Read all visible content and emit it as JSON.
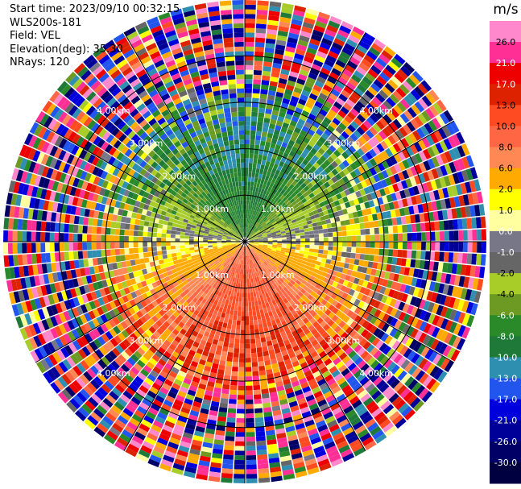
{
  "info": {
    "start_time": "Start time: 2023/09/10 00:32:15",
    "instrument": "WLS200s-181",
    "field": "Field: VEL",
    "elevation": "Elevation(deg): 35.30",
    "nrays": "NRays: 120"
  },
  "chart_data": {
    "type": "heatmap",
    "projection": "polar-ppi",
    "field": "VEL",
    "units": "m/s",
    "nrays": 120,
    "elevation_deg": 35.3,
    "range_rings_km": [
      1.0,
      2.0,
      3.0,
      4.0
    ],
    "ring_labels": [
      "1.00km",
      "2.00km",
      "3.00km",
      "4.00km"
    ],
    "max_range_km": 5.2,
    "radial_lines_deg": [
      0,
      30,
      60,
      90,
      120,
      150,
      180,
      210,
      240,
      270,
      300,
      330
    ],
    "velocity_pattern": {
      "north_sector": "negative (-10 to -4 m/s, toward radar)",
      "south_sector": "positive (8 to 13 m/s, away from radar)",
      "east_west": "near zero",
      "outer_ranges": "noisy, all velocities"
    },
    "colorbar": {
      "ticks": [
        "26.0",
        "21.0",
        "17.0",
        "13.0",
        "10.0",
        "8.0",
        "6.0",
        "2.0",
        "1.0",
        "0.0",
        "-1.0",
        "-2.0",
        "-4.0",
        "-6.0",
        "-8.0",
        "-10.0",
        "-13.0",
        "-17.0",
        "-21.0",
        "-26.0",
        "-30.0"
      ],
      "bins": [
        {
          "max": 30,
          "color": "#ff88cc"
        },
        {
          "max": 26,
          "color": "#ff2f96"
        },
        {
          "max": 21,
          "color": "#ee0000"
        },
        {
          "max": 17,
          "color": "#dd2200"
        },
        {
          "max": 13,
          "color": "#ff4b22"
        },
        {
          "max": 10,
          "color": "#ff6644"
        },
        {
          "max": 8,
          "color": "#ff8855"
        },
        {
          "max": 6,
          "color": "#ffaa00"
        },
        {
          "max": 2,
          "color": "#ffff00"
        },
        {
          "max": 1,
          "color": "#ffffa0"
        },
        {
          "max": 0,
          "color": "#777788"
        },
        {
          "max": -1,
          "color": "#666666"
        },
        {
          "max": -2,
          "color": "#a8cc28"
        },
        {
          "max": -4,
          "color": "#6c9a22"
        },
        {
          "max": -6,
          "color": "#2a8a2a"
        },
        {
          "max": -8,
          "color": "#1f7a3a"
        },
        {
          "max": -10,
          "color": "#2f8fb0"
        },
        {
          "max": -13,
          "color": "#2255ee"
        },
        {
          "max": -17,
          "color": "#0000dd"
        },
        {
          "max": -21,
          "color": "#000099"
        },
        {
          "max": -26,
          "color": "#000066"
        },
        {
          "max": -30,
          "color": "#000040"
        }
      ]
    }
  }
}
